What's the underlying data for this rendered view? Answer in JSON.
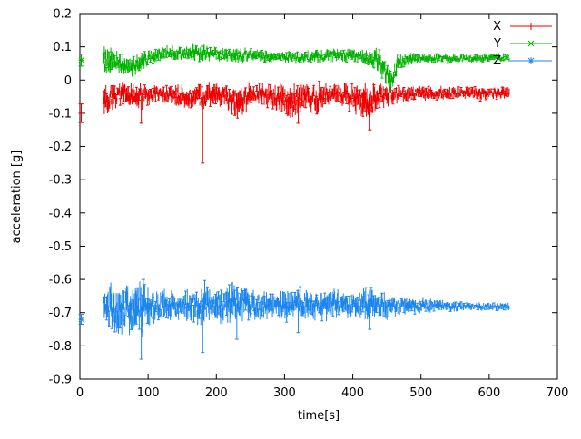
{
  "chart_data": {
    "type": "line",
    "title": "",
    "xlabel": "time[s]",
    "ylabel": "acceleration [g]",
    "xlim": [
      0,
      700
    ],
    "ylim": [
      -0.9,
      0.2
    ],
    "grid": false,
    "legend_position": "top-right-inside",
    "background_color": "#ffffff",
    "axis_color": "#000000",
    "xticks": [
      0,
      100,
      200,
      300,
      400,
      500,
      600,
      700
    ],
    "xtick_labels": [
      "0",
      "100",
      "200",
      "300",
      "400",
      "500",
      "600",
      "700"
    ],
    "yticks": [
      -0.9,
      -0.8,
      -0.7,
      -0.6,
      -0.5,
      -0.4,
      -0.3,
      -0.2,
      -0.1,
      0,
      0.1,
      0.2
    ],
    "ytick_labels": [
      "-0.9",
      "-0.8",
      "-0.7",
      "-0.6",
      "-0.5",
      "-0.4",
      "-0.3",
      "-0.2",
      "-0.1",
      "0",
      "0.1",
      "0.2"
    ],
    "series": [
      {
        "name": "X",
        "color": "#ee0000",
        "style": "errorbars",
        "point_type": "plus",
        "start_point": {
          "t": 2,
          "value": -0.1,
          "err": 0.028
        },
        "envelope": [
          [
            35,
            -0.07,
            0.06
          ],
          [
            42,
            -0.05,
            0.045
          ],
          [
            55,
            -0.05,
            0.04
          ],
          [
            70,
            -0.04,
            0.035
          ],
          [
            85,
            -0.05,
            0.04
          ],
          [
            100,
            -0.045,
            0.03
          ],
          [
            120,
            -0.04,
            0.025
          ],
          [
            140,
            -0.045,
            0.03
          ],
          [
            160,
            -0.05,
            0.035
          ],
          [
            180,
            -0.05,
            0.04
          ],
          [
            200,
            -0.045,
            0.035
          ],
          [
            215,
            -0.05,
            0.04
          ],
          [
            230,
            -0.065,
            0.05
          ],
          [
            245,
            -0.05,
            0.04
          ],
          [
            260,
            -0.04,
            0.03
          ],
          [
            280,
            -0.05,
            0.035
          ],
          [
            300,
            -0.055,
            0.045
          ],
          [
            315,
            -0.065,
            0.05
          ],
          [
            330,
            -0.05,
            0.04
          ],
          [
            350,
            -0.055,
            0.045
          ],
          [
            365,
            -0.04,
            0.03
          ],
          [
            380,
            -0.04,
            0.03
          ],
          [
            395,
            -0.05,
            0.04
          ],
          [
            410,
            -0.06,
            0.05
          ],
          [
            425,
            -0.07,
            0.055
          ],
          [
            440,
            -0.05,
            0.04
          ],
          [
            455,
            -0.04,
            0.03
          ],
          [
            470,
            -0.04,
            0.025
          ],
          [
            490,
            -0.04,
            0.022
          ],
          [
            520,
            -0.04,
            0.02
          ],
          [
            560,
            -0.04,
            0.02
          ],
          [
            600,
            -0.04,
            0.02
          ],
          [
            630,
            -0.04,
            0.02
          ]
        ],
        "spikes": [
          [
            180,
            -0.25
          ],
          [
            90,
            -0.13
          ],
          [
            320,
            -0.13
          ],
          [
            425,
            -0.15
          ]
        ]
      },
      {
        "name": "Y",
        "color": "#00b300",
        "style": "errorbars",
        "point_type": "cross",
        "start_point": {
          "t": 2,
          "value": 0.06,
          "err": 0.018
        },
        "envelope": [
          [
            35,
            0.05,
            0.055
          ],
          [
            42,
            0.06,
            0.045
          ],
          [
            55,
            0.055,
            0.035
          ],
          [
            65,
            0.045,
            0.03
          ],
          [
            75,
            0.04,
            0.03
          ],
          [
            90,
            0.055,
            0.03
          ],
          [
            105,
            0.07,
            0.025
          ],
          [
            120,
            0.08,
            0.02
          ],
          [
            135,
            0.085,
            0.02
          ],
          [
            150,
            0.08,
            0.02
          ],
          [
            165,
            0.085,
            0.025
          ],
          [
            180,
            0.08,
            0.03
          ],
          [
            195,
            0.08,
            0.02
          ],
          [
            210,
            0.075,
            0.02
          ],
          [
            230,
            0.075,
            0.025
          ],
          [
            250,
            0.075,
            0.02
          ],
          [
            270,
            0.07,
            0.018
          ],
          [
            290,
            0.07,
            0.015
          ],
          [
            310,
            0.07,
            0.018
          ],
          [
            330,
            0.068,
            0.018
          ],
          [
            350,
            0.07,
            0.02
          ],
          [
            370,
            0.072,
            0.02
          ],
          [
            390,
            0.075,
            0.02
          ],
          [
            410,
            0.07,
            0.02
          ],
          [
            425,
            0.065,
            0.03
          ],
          [
            440,
            0.055,
            0.035
          ],
          [
            452,
            0.01,
            0.035
          ],
          [
            458,
            -0.005,
            0.025
          ],
          [
            465,
            0.05,
            0.03
          ],
          [
            475,
            0.06,
            0.02
          ],
          [
            495,
            0.065,
            0.015
          ],
          [
            530,
            0.065,
            0.013
          ],
          [
            570,
            0.065,
            0.013
          ],
          [
            610,
            0.068,
            0.013
          ],
          [
            630,
            0.068,
            0.013
          ]
        ],
        "spikes": [
          [
            455,
            -0.03
          ]
        ]
      },
      {
        "name": "Z",
        "color": "#1c86ee",
        "style": "errorbars",
        "point_type": "asterisk",
        "start_point": {
          "t": 2,
          "value": -0.72,
          "err": 0.015
        },
        "envelope": [
          [
            35,
            -0.68,
            0.05
          ],
          [
            45,
            -0.69,
            0.075
          ],
          [
            55,
            -0.7,
            0.08
          ],
          [
            65,
            -0.69,
            0.08
          ],
          [
            75,
            -0.69,
            0.075
          ],
          [
            90,
            -0.68,
            0.09
          ],
          [
            100,
            -0.68,
            0.06
          ],
          [
            115,
            -0.68,
            0.05
          ],
          [
            130,
            -0.68,
            0.045
          ],
          [
            150,
            -0.675,
            0.04
          ],
          [
            165,
            -0.68,
            0.05
          ],
          [
            180,
            -0.68,
            0.07
          ],
          [
            195,
            -0.68,
            0.055
          ],
          [
            210,
            -0.675,
            0.055
          ],
          [
            225,
            -0.67,
            0.06
          ],
          [
            240,
            -0.675,
            0.05
          ],
          [
            255,
            -0.68,
            0.05
          ],
          [
            270,
            -0.68,
            0.045
          ],
          [
            285,
            -0.68,
            0.04
          ],
          [
            300,
            -0.68,
            0.045
          ],
          [
            315,
            -0.67,
            0.05
          ],
          [
            330,
            -0.675,
            0.045
          ],
          [
            345,
            -0.68,
            0.04
          ],
          [
            360,
            -0.675,
            0.045
          ],
          [
            375,
            -0.67,
            0.04
          ],
          [
            390,
            -0.675,
            0.04
          ],
          [
            405,
            -0.68,
            0.045
          ],
          [
            420,
            -0.67,
            0.05
          ],
          [
            435,
            -0.675,
            0.04
          ],
          [
            450,
            -0.68,
            0.035
          ],
          [
            465,
            -0.68,
            0.03
          ],
          [
            480,
            -0.68,
            0.027
          ],
          [
            500,
            -0.68,
            0.022
          ],
          [
            525,
            -0.68,
            0.018
          ],
          [
            550,
            -0.682,
            0.015
          ],
          [
            575,
            -0.682,
            0.013
          ],
          [
            600,
            -0.682,
            0.012
          ],
          [
            630,
            -0.682,
            0.012
          ]
        ],
        "spikes": [
          [
            90,
            -0.84
          ],
          [
            93,
            -0.6
          ],
          [
            180,
            -0.82
          ],
          [
            230,
            -0.78
          ],
          [
            320,
            -0.76
          ],
          [
            425,
            -0.75
          ]
        ]
      }
    ]
  }
}
